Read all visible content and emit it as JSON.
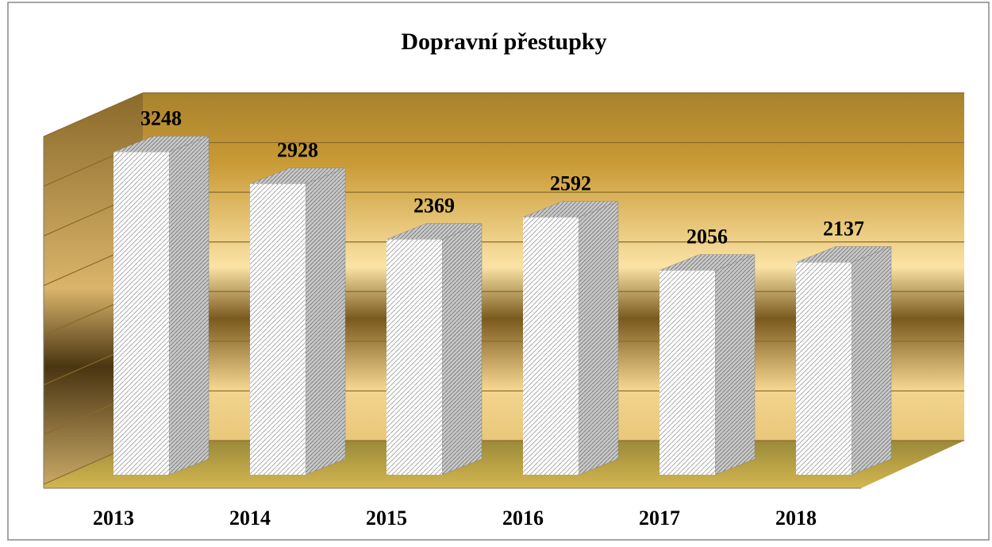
{
  "chart_data": {
    "type": "bar",
    "title": "Dopravní přestupky",
    "categories": [
      "2013",
      "2014",
      "2015",
      "2016",
      "2017",
      "2018"
    ],
    "values": [
      3248,
      2928,
      2369,
      2592,
      2056,
      2137
    ],
    "color": "#ffffff",
    "ylim": [
      0,
      3500
    ],
    "yticks": [
      0,
      500,
      1000,
      1500,
      2000,
      2500,
      3000,
      3500
    ],
    "grid": true
  }
}
